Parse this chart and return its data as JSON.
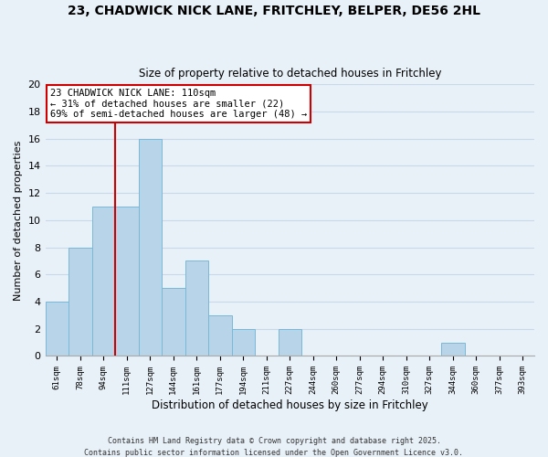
{
  "title": "23, CHADWICK NICK LANE, FRITCHLEY, BELPER, DE56 2HL",
  "subtitle": "Size of property relative to detached houses in Fritchley",
  "xlabel": "Distribution of detached houses by size in Fritchley",
  "ylabel": "Number of detached properties",
  "bin_labels": [
    "61sqm",
    "78sqm",
    "94sqm",
    "111sqm",
    "127sqm",
    "144sqm",
    "161sqm",
    "177sqm",
    "194sqm",
    "211sqm",
    "227sqm",
    "244sqm",
    "260sqm",
    "277sqm",
    "294sqm",
    "310sqm",
    "327sqm",
    "344sqm",
    "360sqm",
    "377sqm",
    "393sqm"
  ],
  "bin_values": [
    4,
    8,
    11,
    11,
    16,
    5,
    7,
    3,
    2,
    0,
    2,
    0,
    0,
    0,
    0,
    0,
    0,
    1,
    0,
    0,
    0
  ],
  "bar_color": "#b8d4e8",
  "bar_edge_color": "#7ab8d8",
  "grid_color": "#c8daea",
  "background_color": "#e8f0f8",
  "vline_x_index": 3,
  "vline_color": "#cc0000",
  "annotation_line1": "23 CHADWICK NICK LANE: 110sqm",
  "annotation_line2": "← 31% of detached houses are smaller (22)",
  "annotation_line3": "69% of semi-detached houses are larger (48) →",
  "annotation_box_color": "#ffffff",
  "annotation_box_edge": "#cc0000",
  "ylim": [
    0,
    20
  ],
  "yticks": [
    0,
    2,
    4,
    6,
    8,
    10,
    12,
    14,
    16,
    18,
    20
  ],
  "footer_line1": "Contains HM Land Registry data © Crown copyright and database right 2025.",
  "footer_line2": "Contains public sector information licensed under the Open Government Licence v3.0."
}
